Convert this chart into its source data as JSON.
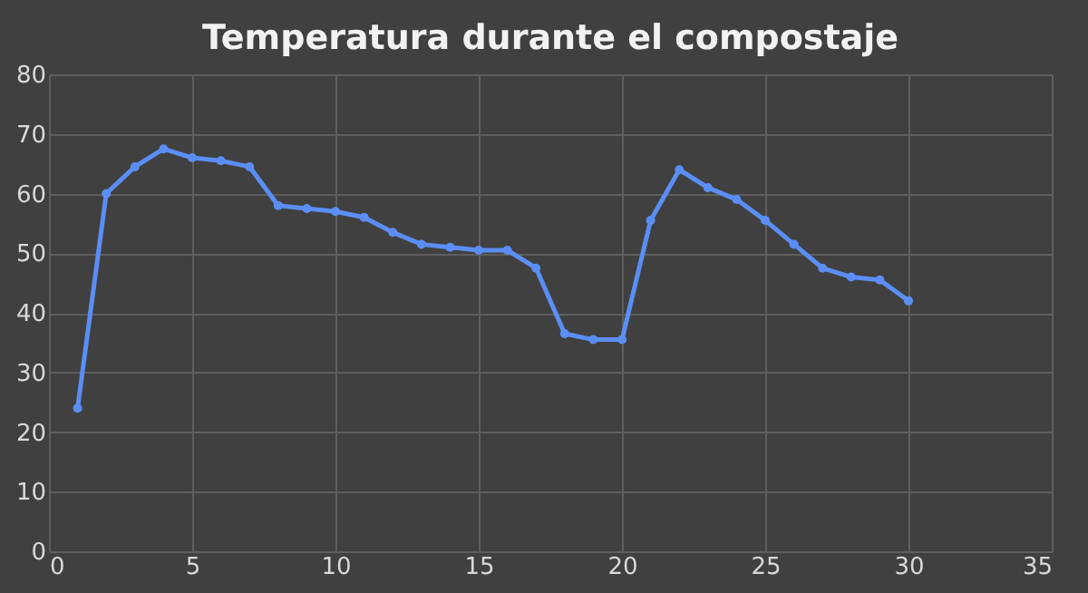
{
  "chart_data": {
    "type": "line",
    "title": "Temperatura durante el compostaje",
    "x": [
      1,
      2,
      3,
      4,
      5,
      6,
      7,
      8,
      9,
      10,
      11,
      12,
      13,
      14,
      15,
      16,
      17,
      18,
      19,
      20,
      21,
      22,
      23,
      24,
      25,
      26,
      27,
      28,
      29,
      30
    ],
    "series": [
      {
        "color": "#5b8ef5",
        "values": [
          24,
          60,
          64.5,
          67.5,
          66,
          65.5,
          64.5,
          58,
          57.5,
          57,
          56,
          53.5,
          51.5,
          51,
          50.5,
          50.5,
          47.5,
          36.5,
          35.5,
          35.5,
          55.5,
          64,
          61,
          59,
          55.5,
          51.5,
          47.5,
          46,
          45.5,
          42
        ]
      }
    ],
    "xlim": [
      0,
      35
    ],
    "xticks": [
      0,
      5,
      10,
      15,
      20,
      25,
      30,
      35
    ],
    "ylim": [
      0,
      80
    ],
    "yticks": [
      0,
      10,
      20,
      30,
      40,
      50,
      60,
      70,
      80
    ],
    "grid": true,
    "marker": "circle",
    "line_style": "solid",
    "legend": false
  }
}
